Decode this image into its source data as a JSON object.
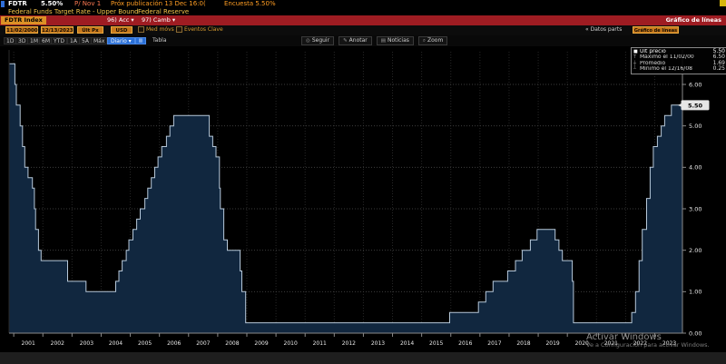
{
  "header": {
    "ticker": "FDTR",
    "last": "5.50%",
    "px_label": "P/ Nov 1",
    "next_release": "Próx publicación 13 Dec 16:0(",
    "survey": "Encuesta 5.50%",
    "name": "Federal Funds Target Rate - Upper Bound",
    "source": "Federal Reserve"
  },
  "function_bar": {
    "security": "FDTR Index",
    "actions": "96) Acc ▾",
    "change": "97) Camb ▾",
    "title": "Gráfico de líneas"
  },
  "settings_bar": {
    "start_date": "11/02/2000",
    "end_date": "12/13/2023",
    "price_field": "Últ Px",
    "currency": "USD",
    "mov_avgs": "Med móvs",
    "mov_avgs_icon": "∕",
    "key_events": "Eventos Clave",
    "data_pts": "« Datos parts",
    "template": "Gráfico de líneas"
  },
  "period_bar": {
    "ranges": [
      "1D",
      "3D",
      "1M",
      "6M",
      "YTD",
      "1A",
      "5A",
      "Máx"
    ],
    "frequency": "Diario ▾",
    "chart_btn_icon": "▥",
    "table": "Tabla",
    "actions": [
      {
        "icon_glyph": "◎",
        "label": "Seguir"
      },
      {
        "icon_glyph": "✎",
        "label": "Anotar"
      },
      {
        "icon_glyph": "▤",
        "label": "Noticias"
      },
      {
        "icon_glyph": "⌕",
        "label": "Zoom"
      }
    ]
  },
  "legend": {
    "rows": [
      {
        "marker": "■",
        "label": "Últ precio",
        "value": "5.50"
      },
      {
        "marker": "T",
        "label": "Máximo el 11/02/00",
        "value": "6.50"
      },
      {
        "marker": "┼",
        "label": "Promedio",
        "value": "1.69"
      },
      {
        "marker": "┴",
        "label": "Mínimo el 12/16/08",
        "value": "0.25"
      }
    ]
  },
  "price_tag": "5.50",
  "watermark": {
    "line1": "Activar Windows",
    "line2": "Ve a Configuración para activar Windows."
  },
  "chart_data": {
    "type": "area",
    "title": "Federal Funds Target Rate - Upper Bound (FDTR Index)",
    "xlabel": "",
    "ylabel": "",
    "step": true,
    "legend_position": "top-right",
    "grid": true,
    "xlim": [
      2000.84,
      2023.95
    ],
    "ylim": [
      0,
      6.6
    ],
    "x_ticks": [
      2001,
      2002,
      2003,
      2004,
      2005,
      2006,
      2007,
      2008,
      2009,
      2010,
      2011,
      2012,
      2013,
      2014,
      2015,
      2016,
      2017,
      2018,
      2019,
      2020,
      2021,
      2022,
      2023
    ],
    "y_ticks": [
      0.0,
      1.0,
      2.0,
      3.0,
      4.0,
      5.0,
      6.0
    ],
    "last_price": 5.5,
    "series": [
      {
        "name": "FDTR Index — Últ precio",
        "points": [
          [
            2000.84,
            6.5
          ],
          [
            2001.04,
            6.0
          ],
          [
            2001.09,
            5.5
          ],
          [
            2001.22,
            5.0
          ],
          [
            2001.3,
            4.5
          ],
          [
            2001.38,
            4.0
          ],
          [
            2001.49,
            3.75
          ],
          [
            2001.64,
            3.5
          ],
          [
            2001.71,
            3.0
          ],
          [
            2001.75,
            2.5
          ],
          [
            2001.85,
            2.0
          ],
          [
            2001.94,
            1.75
          ],
          [
            2002.85,
            1.25
          ],
          [
            2003.48,
            1.0
          ],
          [
            2004.5,
            1.25
          ],
          [
            2004.61,
            1.5
          ],
          [
            2004.72,
            1.75
          ],
          [
            2004.86,
            2.0
          ],
          [
            2004.95,
            2.25
          ],
          [
            2005.09,
            2.5
          ],
          [
            2005.22,
            2.75
          ],
          [
            2005.34,
            3.0
          ],
          [
            2005.5,
            3.25
          ],
          [
            2005.6,
            3.5
          ],
          [
            2005.72,
            3.75
          ],
          [
            2005.84,
            4.0
          ],
          [
            2005.95,
            4.25
          ],
          [
            2006.08,
            4.5
          ],
          [
            2006.24,
            4.75
          ],
          [
            2006.36,
            5.0
          ],
          [
            2006.49,
            5.25
          ],
          [
            2007.71,
            4.75
          ],
          [
            2007.83,
            4.5
          ],
          [
            2007.94,
            4.25
          ],
          [
            2008.06,
            3.5
          ],
          [
            2008.09,
            3.0
          ],
          [
            2008.21,
            2.25
          ],
          [
            2008.33,
            2.0
          ],
          [
            2008.77,
            1.5
          ],
          [
            2008.83,
            1.0
          ],
          [
            2008.96,
            0.25
          ],
          [
            2015.96,
            0.5
          ],
          [
            2016.95,
            0.75
          ],
          [
            2017.2,
            1.0
          ],
          [
            2017.45,
            1.25
          ],
          [
            2017.95,
            1.5
          ],
          [
            2018.22,
            1.75
          ],
          [
            2018.45,
            2.0
          ],
          [
            2018.73,
            2.25
          ],
          [
            2018.96,
            2.5
          ],
          [
            2019.58,
            2.25
          ],
          [
            2019.71,
            2.0
          ],
          [
            2019.83,
            1.75
          ],
          [
            2020.17,
            1.25
          ],
          [
            2020.21,
            0.25
          ],
          [
            2022.21,
            0.5
          ],
          [
            2022.34,
            1.0
          ],
          [
            2022.46,
            1.75
          ],
          [
            2022.57,
            2.5
          ],
          [
            2022.72,
            3.25
          ],
          [
            2022.84,
            4.0
          ],
          [
            2022.95,
            4.5
          ],
          [
            2023.09,
            4.75
          ],
          [
            2023.22,
            5.0
          ],
          [
            2023.34,
            5.25
          ],
          [
            2023.57,
            5.5
          ],
          [
            2023.95,
            5.5
          ]
        ]
      }
    ],
    "colors": {
      "fill": "#11273f",
      "line": "#b7c9da",
      "grid_h": "#3d3d3d",
      "grid_v": "#272727",
      "axis": "#8a8a8a",
      "tick_label": "#e8e8e8",
      "tag_bg": "#e6e6e6",
      "tag_text": "#000000"
    }
  }
}
